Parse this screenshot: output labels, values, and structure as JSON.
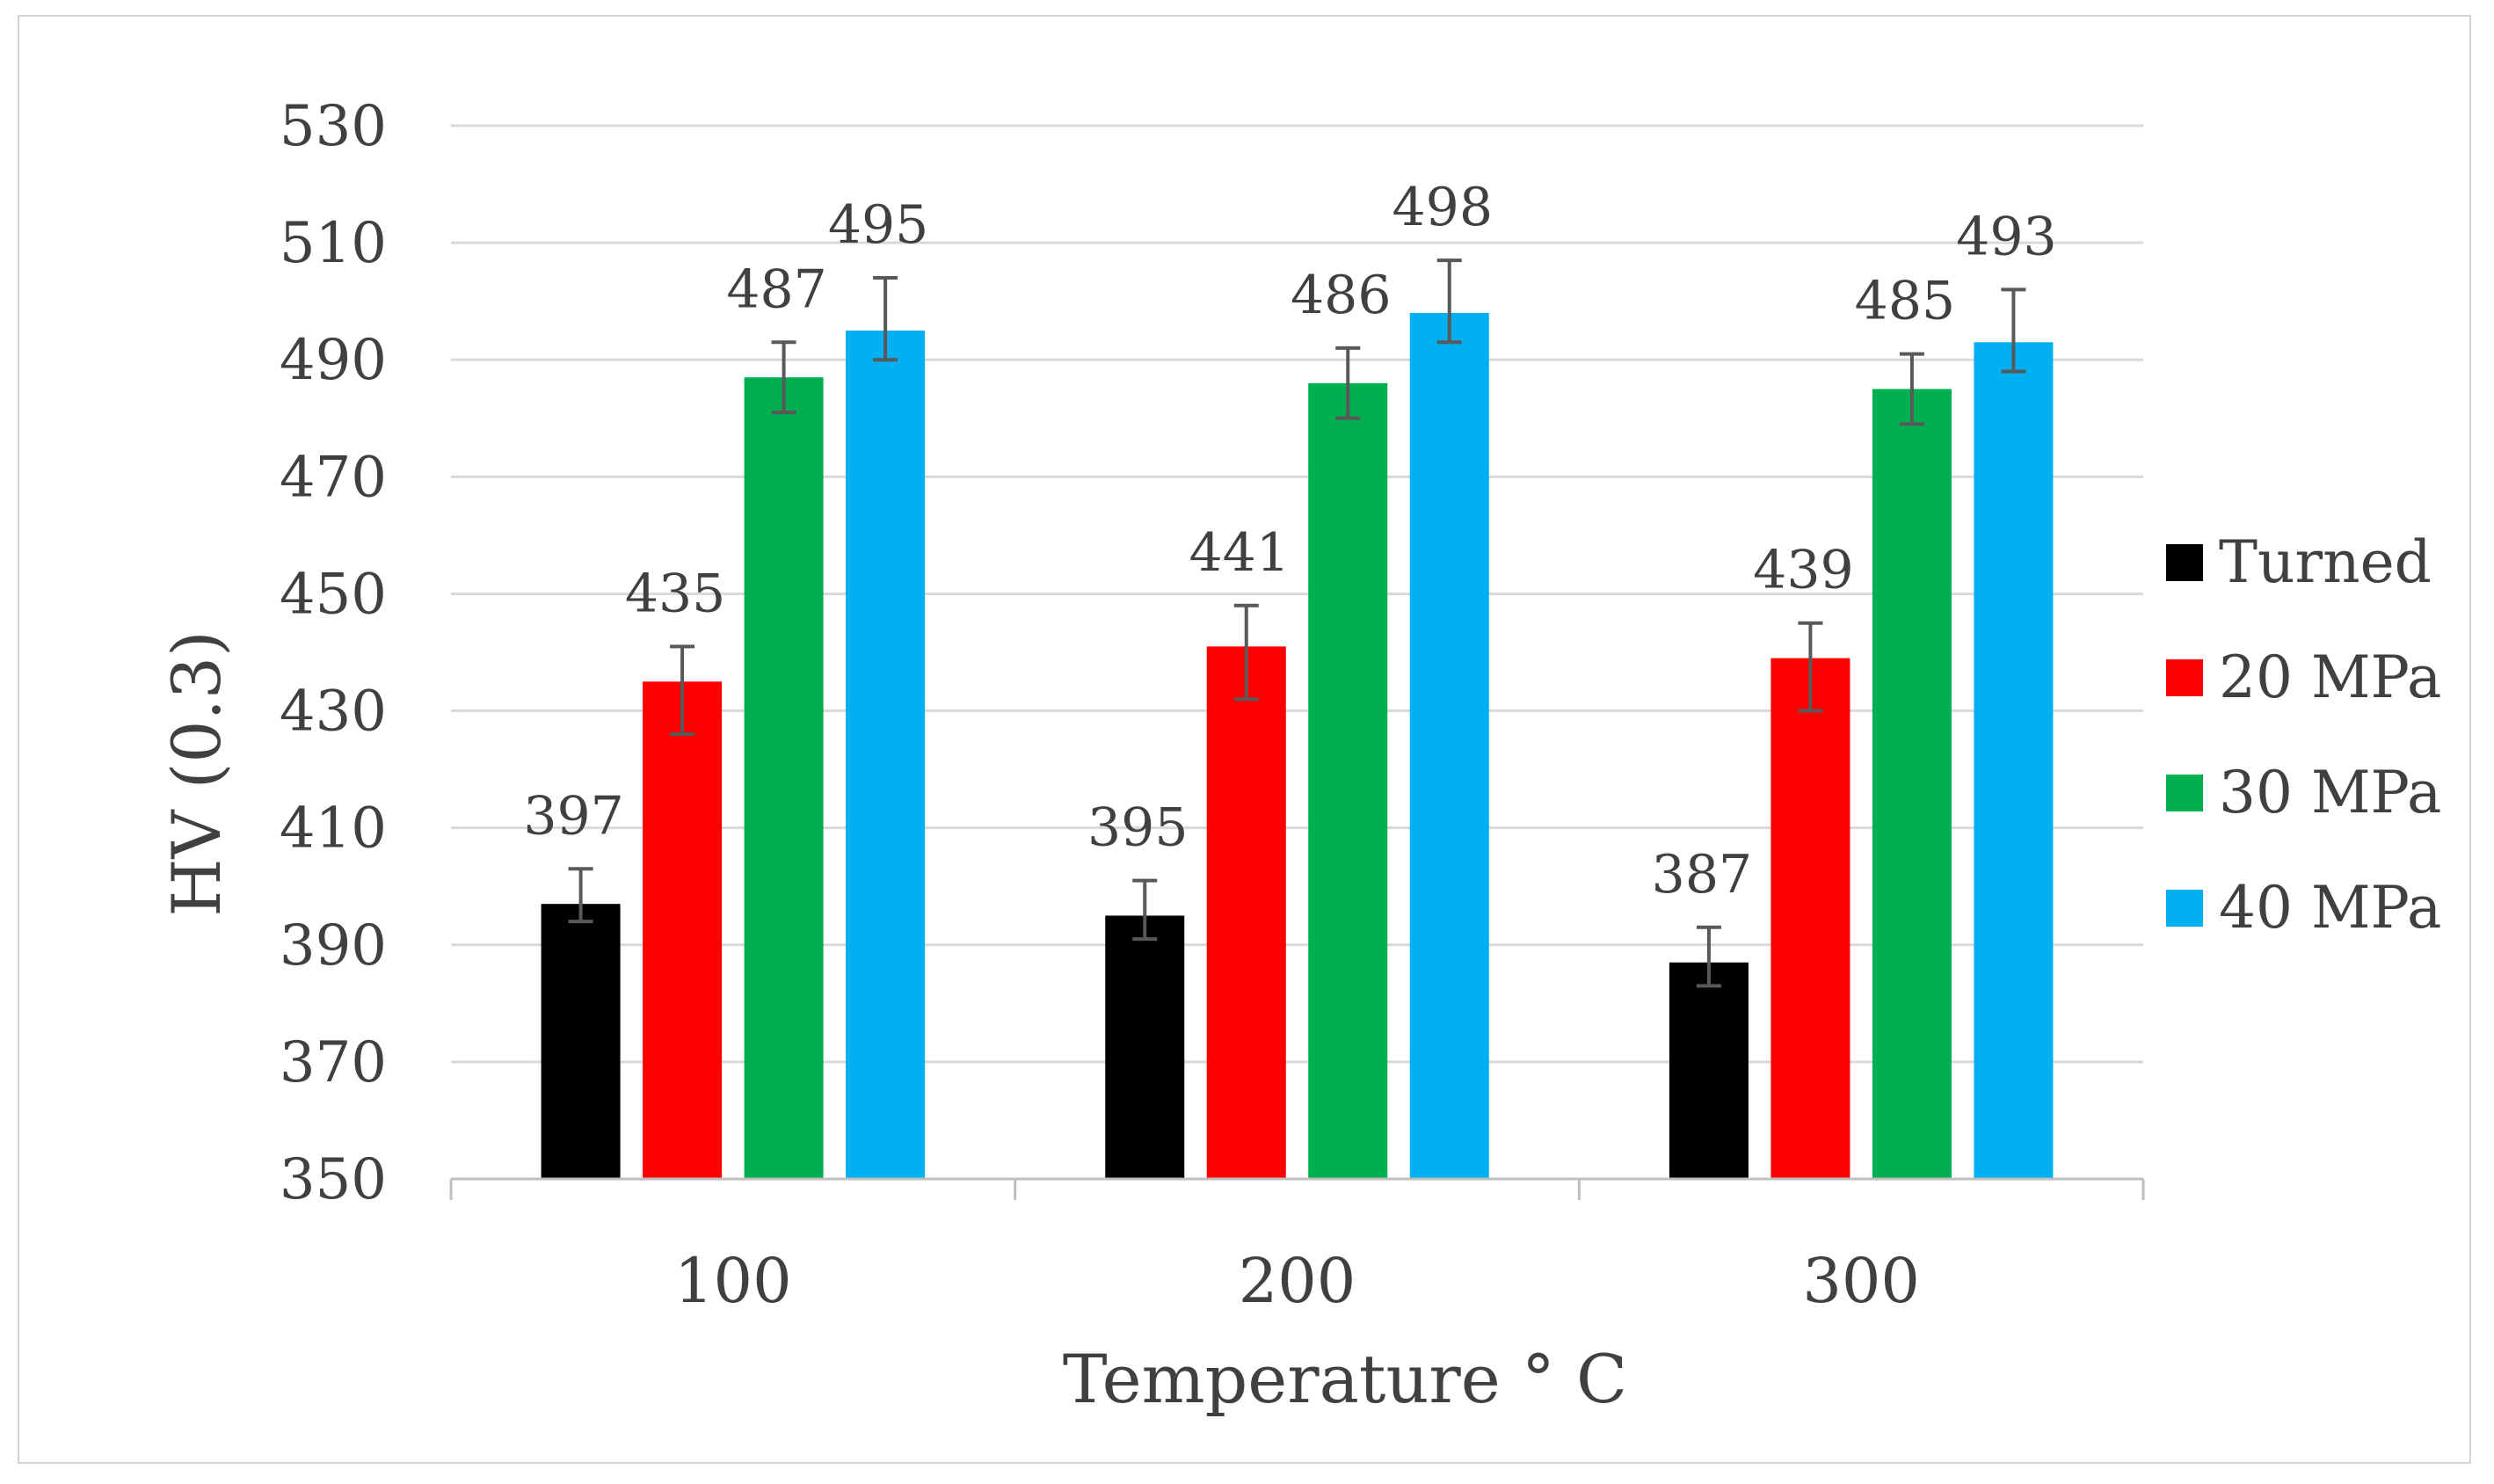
{
  "chart_data": {
    "type": "bar",
    "title": "",
    "xlabel": "Temperature ° C",
    "ylabel": "HV (0.3)",
    "ylim": [
      350,
      530
    ],
    "ytick_step": 20,
    "grid": true,
    "legend_position": "right",
    "categories": [
      "100",
      "200",
      "300"
    ],
    "series": [
      {
        "name": "Turned",
        "color": "#000000",
        "values": [
          397,
          395,
          387
        ],
        "errors": [
          [
            394,
            403
          ],
          [
            391,
            401
          ],
          [
            383,
            393
          ]
        ]
      },
      {
        "name": "20 MPa",
        "color": "#ff0000",
        "values": [
          435,
          441,
          439
        ],
        "errors": [
          [
            426,
            441
          ],
          [
            432,
            448
          ],
          [
            430,
            445
          ]
        ]
      },
      {
        "name": "30 MPa",
        "color": "#00b050",
        "values": [
          487,
          486,
          485
        ],
        "errors": [
          [
            481,
            493
          ],
          [
            480,
            492
          ],
          [
            479,
            491
          ]
        ]
      },
      {
        "name": "40 MPa",
        "color": "#00b0f0",
        "values": [
          495,
          498,
          493
        ],
        "errors": [
          [
            490,
            504
          ],
          [
            493,
            507
          ],
          [
            488,
            502
          ]
        ]
      }
    ]
  }
}
